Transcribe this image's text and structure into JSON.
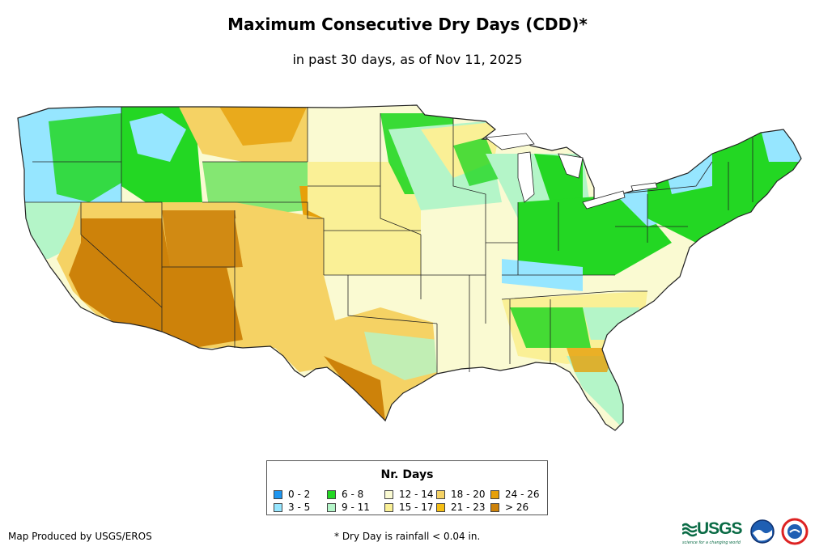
{
  "title": "Maximum Consecutive Dry Days (CDD)*",
  "subtitle": "in past 30 days, as of Nov 11, 2025",
  "legend": {
    "title": "Nr. Days",
    "items": [
      {
        "label": "0 - 2",
        "color": "#1e96f0"
      },
      {
        "label": "3 - 5",
        "color": "#96e6ff"
      },
      {
        "label": "6 - 8",
        "color": "#23d723"
      },
      {
        "label": "9 - 11",
        "color": "#b4f5c8"
      },
      {
        "label": "12 - 14",
        "color": "#fafad2"
      },
      {
        "label": "15 - 17",
        "color": "#faf096"
      },
      {
        "label": "18 - 20",
        "color": "#f5d264"
      },
      {
        "label": "21 - 23",
        "color": "#f5be14"
      },
      {
        "label": "24 - 26",
        "color": "#e6a00a"
      },
      {
        "label": "> 26",
        "color": "#cd820a"
      }
    ]
  },
  "footer": {
    "credit": "Map Produced by USGS/EROS",
    "note": "* Dry Day is rainfall < 0.04 in."
  },
  "logos": {
    "usgs": "USGS",
    "usgs_tagline": "science for a changing world",
    "noaa_icon": "noaa-logo-icon",
    "nws_icon": "nws-logo-icon"
  }
}
